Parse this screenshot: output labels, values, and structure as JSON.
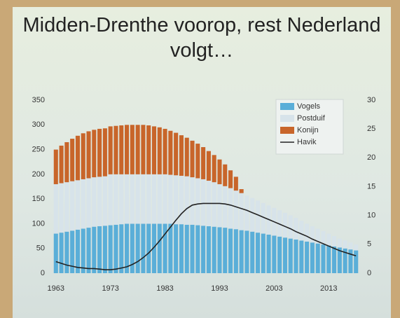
{
  "chart_data": {
    "type": "stacked-bar-line",
    "title": "Midden-Drenthe voorop, rest Nederland volgt…",
    "x": [
      1963,
      1964,
      1965,
      1966,
      1967,
      1968,
      1969,
      1970,
      1971,
      1972,
      1973,
      1974,
      1975,
      1976,
      1977,
      1978,
      1979,
      1980,
      1981,
      1982,
      1983,
      1984,
      1985,
      1986,
      1987,
      1988,
      1989,
      1990,
      1991,
      1992,
      1993,
      1994,
      1995,
      1996,
      1997,
      1998,
      1999,
      2000,
      2001,
      2002,
      2003,
      2004,
      2005,
      2006,
      2007,
      2008,
      2009,
      2010,
      2011,
      2012,
      2013,
      2014,
      2015,
      2016,
      2017,
      2018
    ],
    "xlim": [
      1962,
      2019
    ],
    "xticks": [
      1963,
      1973,
      1983,
      1993,
      2003,
      2013
    ],
    "ylim": [
      0,
      350
    ],
    "yticks": [
      0,
      50,
      100,
      150,
      200,
      250,
      300,
      350
    ],
    "y2lim": [
      0,
      30
    ],
    "y2ticks": [
      0,
      5,
      10,
      15,
      20,
      25,
      30
    ],
    "legend": "top-right",
    "series": [
      {
        "name": "Vogels",
        "color": "#5aaed8",
        "values": [
          80,
          82,
          84,
          86,
          88,
          90,
          92,
          94,
          95,
          96,
          97,
          98,
          99,
          100,
          100,
          100,
          100,
          100,
          100,
          100,
          100,
          100,
          99,
          99,
          98,
          98,
          97,
          96,
          95,
          94,
          93,
          92,
          90,
          89,
          87,
          86,
          84,
          82,
          80,
          78,
          76,
          74,
          72,
          70,
          68,
          66,
          64,
          62,
          60,
          58,
          56,
          54,
          52,
          50,
          48,
          46
        ]
      },
      {
        "name": "Postduif",
        "color": "#d7e3ea",
        "values": [
          100,
          100,
          100,
          100,
          100,
          100,
          100,
          100,
          100,
          100,
          103,
          102,
          101,
          100,
          100,
          100,
          100,
          100,
          100,
          100,
          100,
          99,
          99,
          98,
          98,
          96,
          95,
          94,
          92,
          90,
          87,
          84,
          82,
          78,
          75,
          71,
          68,
          65,
          62,
          59,
          56,
          53,
          50,
          47,
          44,
          40,
          36,
          33,
          30,
          27,
          24,
          21,
          18,
          16,
          14,
          12
        ]
      },
      {
        "name": "Konijn",
        "color": "#c8652a",
        "values": [
          70,
          76,
          81,
          86,
          90,
          93,
          95,
          96,
          97,
          97,
          97,
          98,
          99,
          100,
          100,
          100,
          100,
          99,
          97,
          95,
          92,
          89,
          86,
          82,
          78,
          74,
          70,
          65,
          60,
          55,
          50,
          44,
          36,
          28,
          8,
          0,
          0,
          0,
          0,
          0,
          0,
          0,
          0,
          0,
          0,
          0,
          0,
          0,
          0,
          0,
          0,
          0,
          0,
          0,
          0,
          0
        ]
      },
      {
        "name": "Havik",
        "color": "#222222",
        "axis": "y2",
        "values": [
          2.0,
          1.7,
          1.4,
          1.2,
          1.0,
          0.9,
          0.8,
          0.8,
          0.7,
          0.6,
          0.6,
          0.7,
          0.9,
          1.1,
          1.5,
          2.0,
          2.7,
          3.5,
          4.5,
          5.6,
          6.8,
          8.0,
          9.2,
          10.3,
          11.2,
          11.8,
          12.0,
          12.1,
          12.1,
          12.1,
          12.1,
          12.0,
          11.8,
          11.5,
          11.2,
          10.9,
          10.5,
          10.1,
          9.7,
          9.3,
          8.9,
          8.5,
          8.1,
          7.7,
          7.2,
          6.8,
          6.4,
          5.9,
          5.5,
          5.1,
          4.7,
          4.3,
          3.9,
          3.6,
          3.3,
          3.0
        ]
      }
    ]
  }
}
